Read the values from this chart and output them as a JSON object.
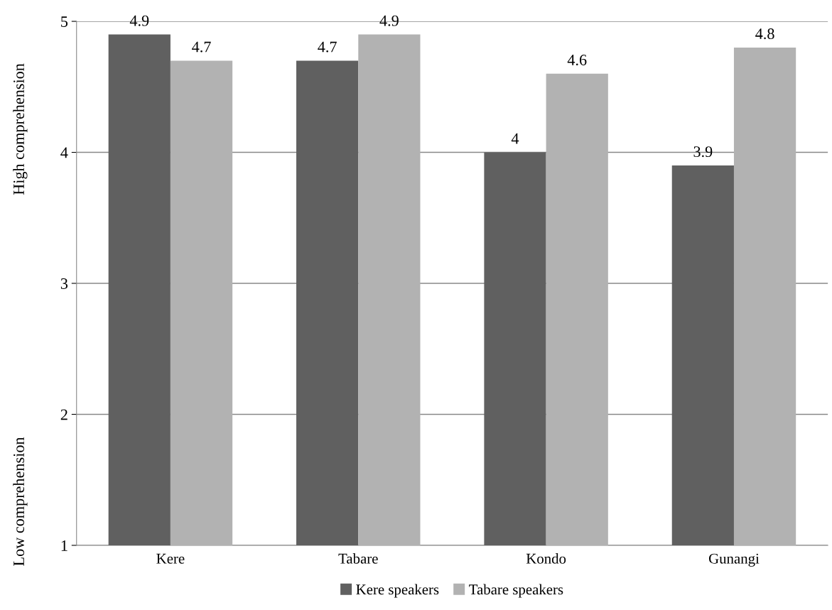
{
  "chart_data": {
    "type": "bar",
    "categories": [
      "Kere",
      "Tabare",
      "Kondo",
      "Gunangi"
    ],
    "series": [
      {
        "name": "Kere speakers",
        "color": "#606060",
        "values": [
          4.9,
          4.7,
          4,
          3.9
        ]
      },
      {
        "name": "Tabare speakers",
        "color": "#b2b2b2",
        "values": [
          4.7,
          4.9,
          4.6,
          4.8
        ]
      }
    ],
    "ylim": [
      1,
      5
    ],
    "yticks": [
      1,
      2,
      3,
      4,
      5
    ],
    "grid": "y",
    "legend": "bottom",
    "data_labels": true,
    "annotations": [
      "High comprehension",
      "Low comprehension"
    ]
  }
}
